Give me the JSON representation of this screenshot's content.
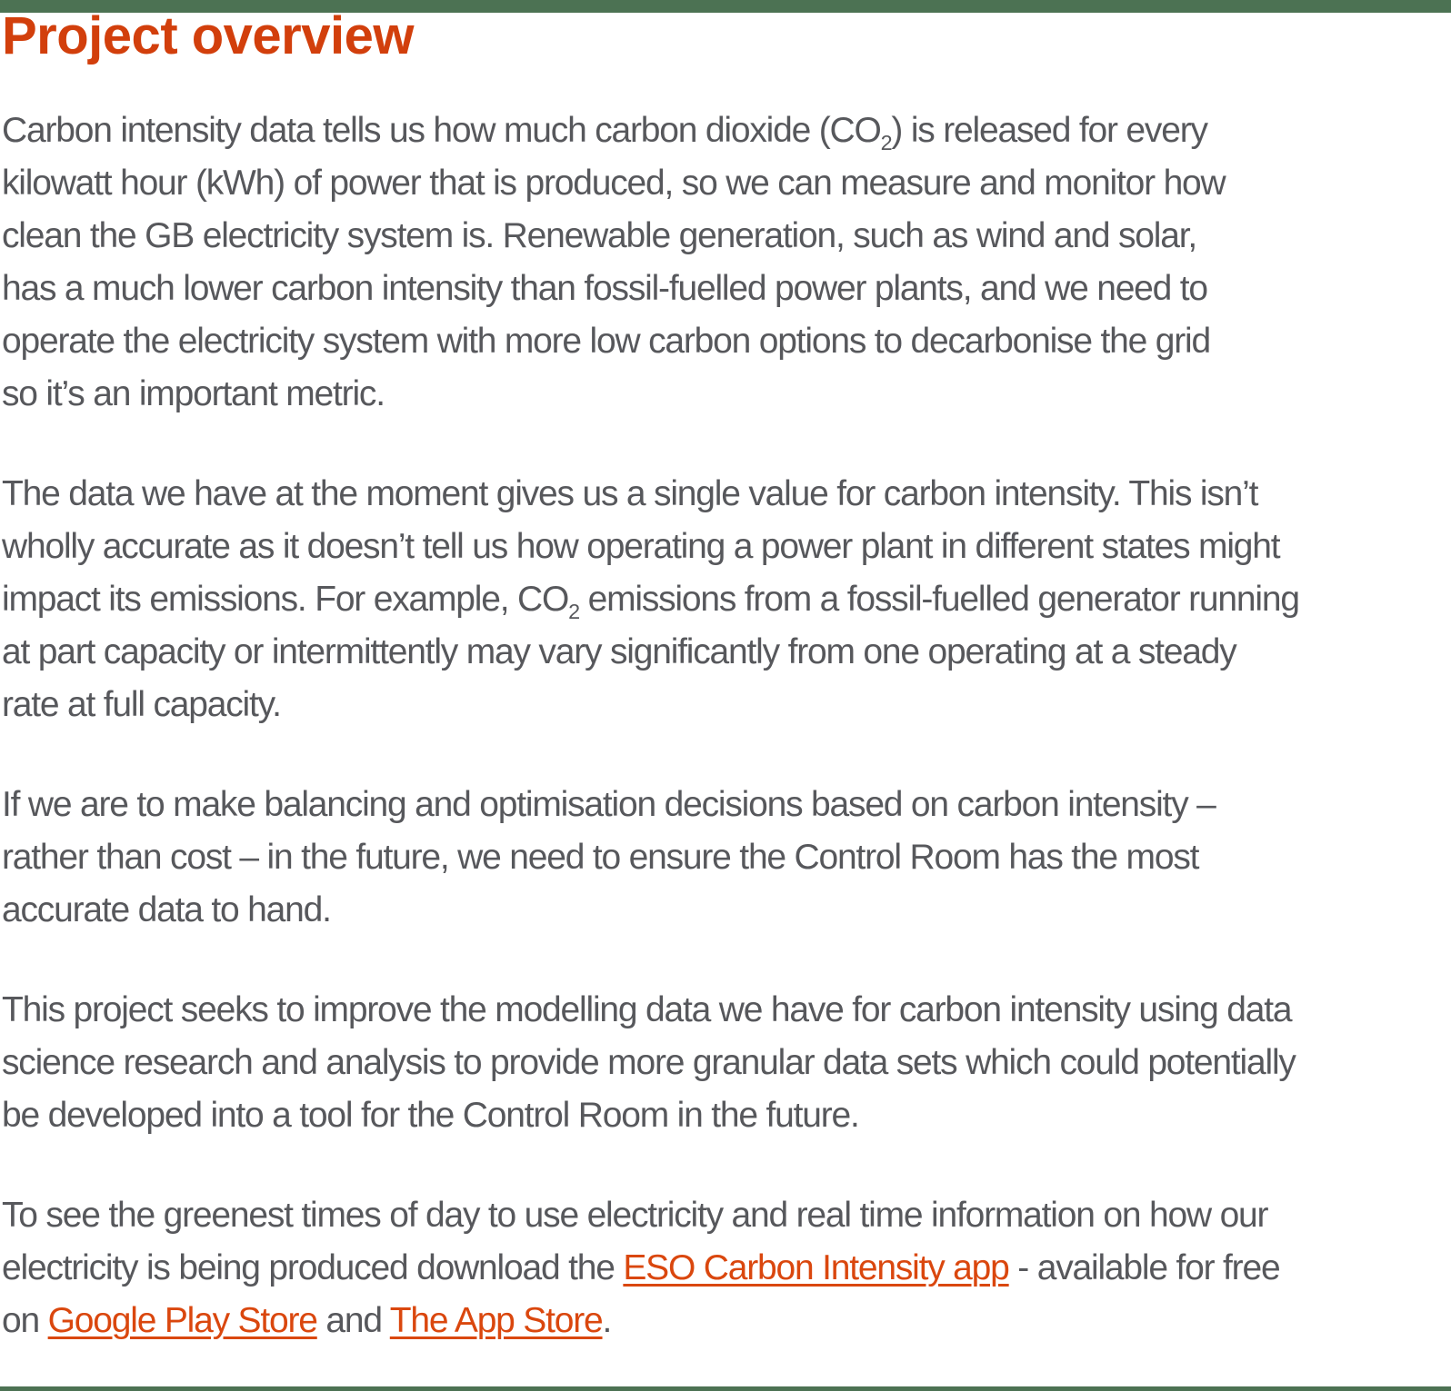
{
  "page_title": "Project overview",
  "colors": {
    "heading_text": "#d23f0c",
    "body_text": "#57585c",
    "link_text": "#da470e",
    "divider_bar": "#4c7253",
    "background": "#ffffff"
  },
  "article": {
    "paragraphs": [
      {
        "lines": [
          {
            "segments": [
              {
                "text": "Carbon intensity data tells us how much carbon dioxide (CO"
              },
              {
                "text": "2",
                "style": "sub"
              },
              {
                "text": ") is released for every"
              }
            ]
          },
          {
            "segments": [
              {
                "text": "kilowatt hour (kWh) of power that is produced, so we can measure and monitor how"
              }
            ]
          },
          {
            "segments": [
              {
                "text": "clean the GB electricity system is. Renewable generation, such as wind and solar,"
              }
            ]
          },
          {
            "segments": [
              {
                "text": "has a much lower carbon intensity than fossil-fuelled power plants, and we need to"
              }
            ]
          },
          {
            "segments": [
              {
                "text": "operate the electricity system with more low carbon options to decarbonise the grid"
              }
            ]
          },
          {
            "segments": [
              {
                "text": "so it’s an important metric."
              }
            ]
          }
        ]
      },
      {
        "lines": [
          {
            "segments": [
              {
                "text": "The data we have at the moment gives us a single value for carbon intensity. This isn’t"
              }
            ]
          },
          {
            "segments": [
              {
                "text": "wholly accurate as it doesn’t tell us how operating a power plant in different states might"
              }
            ]
          },
          {
            "segments": [
              {
                "text": "impact its emissions. For example, CO"
              },
              {
                "text": "2",
                "style": "sub"
              },
              {
                "text": " emissions from a fossil-fuelled generator running"
              }
            ]
          },
          {
            "segments": [
              {
                "text": "at part capacity or intermittently may vary significantly from one operating at a steady"
              }
            ]
          },
          {
            "segments": [
              {
                "text": "rate at full capacity."
              }
            ]
          }
        ]
      },
      {
        "lines": [
          {
            "segments": [
              {
                "text": "If we are to make balancing and optimisation decisions based on carbon intensity –"
              }
            ]
          },
          {
            "segments": [
              {
                "text": "rather than cost – in the future, we need to ensure the Control Room has the most"
              }
            ]
          },
          {
            "segments": [
              {
                "text": "accurate data to hand."
              }
            ]
          }
        ]
      },
      {
        "lines": [
          {
            "segments": [
              {
                "text": "This project seeks to improve the modelling data we have for carbon intensity using data"
              }
            ]
          },
          {
            "segments": [
              {
                "text": "science research and analysis to provide more granular data sets which could potentially"
              }
            ]
          },
          {
            "segments": [
              {
                "text": "be developed into a tool for the Control Room in the future."
              }
            ]
          }
        ]
      },
      {
        "lines": [
          {
            "segments": [
              {
                "text": "To see the greenest times of day to use electricity and real time information on how our"
              }
            ]
          },
          {
            "segments": [
              {
                "text": "electricity is being produced download the "
              },
              {
                "text": "ESO Carbon Intensity app",
                "style": "link"
              },
              {
                "text": " - available for free"
              }
            ]
          },
          {
            "segments": [
              {
                "text": "on "
              },
              {
                "text": "Google Play Store",
                "style": "link"
              },
              {
                "text": " and "
              },
              {
                "text": "The App Store",
                "style": "link"
              },
              {
                "text": "."
              }
            ]
          }
        ]
      }
    ]
  }
}
